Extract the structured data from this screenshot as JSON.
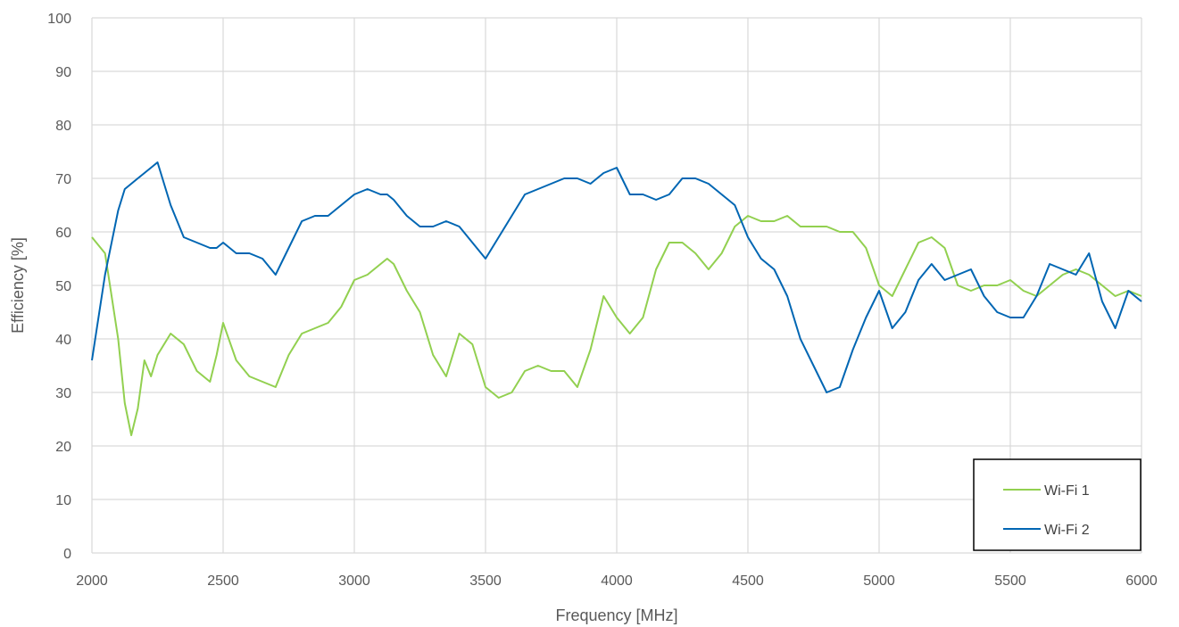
{
  "chart_data": {
    "type": "line",
    "title": "",
    "xlabel": "Frequency [MHz]",
    "ylabel": "Efficiency [%]",
    "xlim": [
      2000,
      6000
    ],
    "ylim": [
      0,
      100
    ],
    "x_ticks": [
      "2000",
      "2500",
      "3000",
      "3500",
      "4000",
      "4500",
      "5000",
      "5500",
      "6000"
    ],
    "y_ticks": [
      "0",
      "10",
      "20",
      "30",
      "40",
      "50",
      "60",
      "70",
      "80",
      "90",
      "100"
    ],
    "grid": true,
    "legend_position": "bottom-right",
    "x": [
      2000,
      2050,
      2100,
      2125,
      2150,
      2175,
      2200,
      2225,
      2250,
      2300,
      2350,
      2400,
      2450,
      2475,
      2500,
      2550,
      2600,
      2650,
      2700,
      2750,
      2800,
      2850,
      2900,
      2950,
      3000,
      3050,
      3100,
      3125,
      3150,
      3200,
      3250,
      3300,
      3350,
      3400,
      3450,
      3500,
      3550,
      3600,
      3650,
      3700,
      3750,
      3800,
      3850,
      3900,
      3950,
      4000,
      4050,
      4100,
      4150,
      4200,
      4250,
      4300,
      4350,
      4400,
      4450,
      4500,
      4550,
      4600,
      4650,
      4700,
      4750,
      4800,
      4850,
      4900,
      4950,
      5000,
      5050,
      5100,
      5150,
      5200,
      5250,
      5300,
      5350,
      5400,
      5450,
      5500,
      5550,
      5600,
      5650,
      5700,
      5750,
      5800,
      5850,
      5900,
      5950,
      6000
    ],
    "series": [
      {
        "name": "Wi-Fi 1",
        "color": "#92D050",
        "values": [
          59,
          56,
          40,
          28,
          22,
          27,
          36,
          33,
          37,
          41,
          39,
          34,
          32,
          37,
          43,
          36,
          33,
          32,
          31,
          37,
          41,
          42,
          43,
          46,
          51,
          52,
          54,
          55,
          54,
          49,
          45,
          37,
          33,
          41,
          39,
          31,
          29,
          30,
          34,
          35,
          34,
          34,
          31,
          38,
          48,
          44,
          41,
          44,
          53,
          58,
          58,
          56,
          53,
          56,
          61,
          63,
          62,
          62,
          63,
          61,
          61,
          61,
          60,
          60,
          57,
          50,
          48,
          53,
          58,
          59,
          57,
          50,
          49,
          50,
          50,
          51,
          49,
          48,
          50,
          52,
          53,
          52,
          50,
          48,
          49,
          48
        ]
      },
      {
        "name": "Wi-Fi 2",
        "color": "#0066B3",
        "values": [
          36,
          52,
          64,
          68,
          69,
          70,
          71,
          72,
          73,
          65,
          59,
          58,
          57,
          57,
          58,
          56,
          56,
          55,
          52,
          57,
          62,
          63,
          63,
          65,
          67,
          68,
          67,
          67,
          66,
          63,
          61,
          61,
          62,
          61,
          58,
          55,
          59,
          63,
          67,
          68,
          69,
          70,
          70,
          69,
          71,
          72,
          67,
          67,
          66,
          67,
          70,
          70,
          69,
          67,
          65,
          59,
          55,
          53,
          48,
          40,
          35,
          30,
          31,
          38,
          44,
          49,
          42,
          45,
          51,
          54,
          51,
          52,
          53,
          48,
          45,
          44,
          44,
          48,
          54,
          53,
          52,
          56,
          47,
          42,
          49,
          47
        ]
      }
    ]
  }
}
